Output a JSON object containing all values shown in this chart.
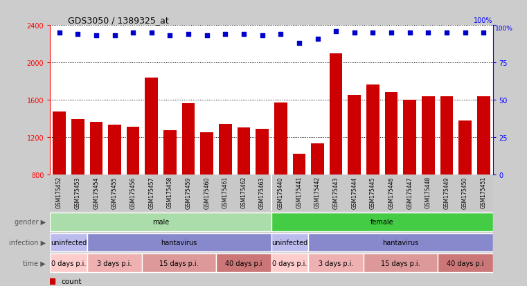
{
  "title": "GDS3050 / 1389325_at",
  "samples": [
    "GSM175452",
    "GSM175453",
    "GSM175454",
    "GSM175455",
    "GSM175456",
    "GSM175457",
    "GSM175458",
    "GSM175459",
    "GSM175460",
    "GSM175461",
    "GSM175462",
    "GSM175463",
    "GSM175440",
    "GSM175441",
    "GSM175442",
    "GSM175443",
    "GSM175444",
    "GSM175445",
    "GSM175446",
    "GSM175447",
    "GSM175448",
    "GSM175449",
    "GSM175450",
    "GSM175451"
  ],
  "counts": [
    1470,
    1390,
    1360,
    1330,
    1310,
    1840,
    1270,
    1560,
    1250,
    1340,
    1300,
    1290,
    1570,
    1020,
    1130,
    2100,
    1650,
    1760,
    1680,
    1600,
    1640,
    1640,
    1380,
    1640
  ],
  "percentiles": [
    95,
    94,
    93,
    93,
    95,
    95,
    93,
    94,
    93,
    94,
    94,
    93,
    94,
    88,
    91,
    96,
    95,
    95,
    95,
    95,
    95,
    95,
    95,
    95
  ],
  "ylim": [
    800,
    2400
  ],
  "yticks": [
    800,
    1200,
    1600,
    2000,
    2400
  ],
  "right_ylim": [
    0,
    100
  ],
  "right_yticks": [
    0,
    25,
    50,
    75,
    100
  ],
  "bar_color": "#cc0000",
  "dot_color": "#0000cc",
  "gender_row": [
    {
      "label": "male",
      "start": 0,
      "end": 12,
      "color": "#aaddaa"
    },
    {
      "label": "female",
      "start": 12,
      "end": 24,
      "color": "#44cc44"
    }
  ],
  "infection_row": [
    {
      "label": "uninfected",
      "start": 0,
      "end": 2,
      "color": "#bbbbee"
    },
    {
      "label": "hantavirus",
      "start": 2,
      "end": 12,
      "color": "#8888cc"
    },
    {
      "label": "uninfected",
      "start": 12,
      "end": 14,
      "color": "#bbbbee"
    },
    {
      "label": "hantavirus",
      "start": 14,
      "end": 24,
      "color": "#8888cc"
    }
  ],
  "time_row": [
    {
      "label": "0 days p.i.",
      "start": 0,
      "end": 2,
      "color": "#ffcccc"
    },
    {
      "label": "3 days p.i.",
      "start": 2,
      "end": 5,
      "color": "#eeb0b0"
    },
    {
      "label": "15 days p.i.",
      "start": 5,
      "end": 9,
      "color": "#dd9999"
    },
    {
      "label": "40 days p.i",
      "start": 9,
      "end": 12,
      "color": "#cc7777"
    },
    {
      "label": "0 days p.i.",
      "start": 12,
      "end": 14,
      "color": "#ffcccc"
    },
    {
      "label": "3 days p.i.",
      "start": 14,
      "end": 17,
      "color": "#eeb0b0"
    },
    {
      "label": "15 days p.i.",
      "start": 17,
      "end": 21,
      "color": "#dd9999"
    },
    {
      "label": "40 days p.i",
      "start": 21,
      "end": 24,
      "color": "#cc7777"
    }
  ],
  "fig_bg": "#cccccc",
  "plot_bg": "#ffffff",
  "xtick_bg": "#c8c8c8"
}
